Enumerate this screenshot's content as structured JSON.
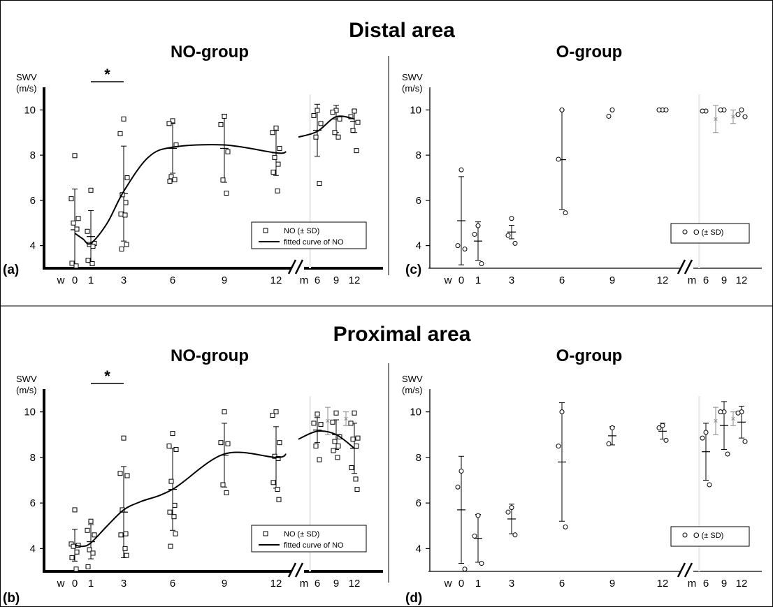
{
  "sections": [
    {
      "title": "Distal area"
    },
    {
      "title": "Proximal area"
    }
  ],
  "y_label_line1": "SWV",
  "y_label_line2": "(m/s)",
  "chart_data": [
    {
      "panel": "(a)",
      "section": "Distal area",
      "group_title": "NO-group",
      "type": "scatter",
      "ylim": [
        3,
        11
      ],
      "yticks": [
        4,
        6,
        8,
        10
      ],
      "xticks_weeks": [
        "w",
        "0",
        "1",
        "3",
        "6",
        "9",
        "12"
      ],
      "xticks_months": [
        "m",
        "6",
        "9",
        "12"
      ],
      "marker": "square",
      "legend": {
        "items": [
          "NO (± SD)",
          "fitted curve of NO"
        ],
        "position": "lower-right"
      },
      "significance": {
        "label": "*",
        "from": "1",
        "to": "3"
      },
      "points": [
        {
          "x": "0",
          "y": [
            7.98,
            6.07,
            5.2,
            5.0,
            4.73,
            3.22,
            3.1
          ]
        },
        {
          "x": "1",
          "y": [
            6.45,
            4.63,
            4.1,
            4.05,
            3.97,
            3.35,
            3.2
          ]
        },
        {
          "x": "3",
          "y": [
            9.6,
            8.95,
            7.0,
            6.25,
            5.9,
            5.4,
            5.35,
            4.05,
            3.85
          ]
        },
        {
          "x": "6",
          "y": [
            9.52,
            9.4,
            8.45,
            7.05,
            6.92,
            6.85
          ]
        },
        {
          "x": "9",
          "y": [
            9.72,
            9.35,
            8.15,
            6.9,
            6.32
          ]
        },
        {
          "x": "12",
          "y": [
            9.2,
            9.0,
            8.3,
            7.9,
            7.6,
            7.25,
            6.42
          ]
        },
        {
          "x": "m6",
          "y": [
            9.98,
            9.75,
            9.4,
            8.8,
            6.75
          ]
        },
        {
          "x": "m9",
          "y": [
            9.98,
            9.9,
            9.6,
            9.0,
            8.8
          ]
        },
        {
          "x": "m12",
          "y": [
            9.95,
            9.7,
            9.45,
            9.1,
            8.2
          ]
        }
      ],
      "errorbars": [
        {
          "x": "0",
          "mean": 4.7,
          "sd": 1.8
        },
        {
          "x": "1",
          "mean": 4.4,
          "sd": 1.15
        },
        {
          "x": "3",
          "mean": 6.3,
          "sd": 2.1
        },
        {
          "x": "6",
          "mean": 8.3,
          "sd": 1.1
        },
        {
          "x": "9",
          "mean": 8.3,
          "sd": 1.5
        },
        {
          "x": "12",
          "mean": 8.1,
          "sd": 1.0
        },
        {
          "x": "m6",
          "mean": 9.1,
          "sd": 1.15
        },
        {
          "x": "m9",
          "mean": 9.6,
          "sd": 0.6
        },
        {
          "x": "m12",
          "mean": 9.5,
          "sd": 0.5
        }
      ],
      "fitted_curve": {
        "segment1": [
          [
            "0",
            4.55
          ],
          [
            "0.5",
            4.3
          ],
          [
            "1",
            4.1
          ],
          [
            "2",
            5.0
          ],
          [
            "3",
            6.4
          ],
          [
            "4.5",
            7.9
          ],
          [
            "6",
            8.35
          ],
          [
            "9",
            8.45
          ],
          [
            "12",
            8.1
          ],
          [
            "12.6",
            8.15
          ]
        ],
        "segment2": [
          [
            "m5",
            8.8
          ],
          [
            "m6",
            9.05
          ],
          [
            "m9",
            9.7
          ],
          [
            "m12",
            9.6
          ]
        ]
      }
    },
    {
      "panel": "(c)",
      "section": "Distal area",
      "group_title": "O-group",
      "type": "scatter",
      "ylim": [
        3,
        11
      ],
      "yticks": [
        4,
        6,
        8,
        10
      ],
      "xticks_weeks": [
        "w",
        "0",
        "1",
        "3",
        "6",
        "9",
        "12"
      ],
      "xticks_months": [
        "m",
        "6",
        "9",
        "12"
      ],
      "marker": "circle",
      "legend": {
        "items": [
          "O (± SD)"
        ],
        "position": "lower-right"
      },
      "points": [
        {
          "x": "0",
          "y": [
            7.35,
            4.0,
            3.85
          ]
        },
        {
          "x": "1",
          "y": [
            4.88,
            4.5,
            3.2
          ]
        },
        {
          "x": "3",
          "y": [
            5.2,
            4.45,
            4.1
          ]
        },
        {
          "x": "6",
          "y": [
            10.0,
            7.82,
            5.45
          ]
        },
        {
          "x": "9",
          "y": [
            10.0,
            9.72
          ]
        },
        {
          "x": "12",
          "y": [
            10.0,
            10.0,
            10.0
          ]
        },
        {
          "x": "m6",
          "y": [
            9.95,
            9.95
          ]
        },
        {
          "x": "m9",
          "y": [
            10.0,
            10.0
          ]
        },
        {
          "x": "m12",
          "y": [
            10.0,
            9.8,
            9.7
          ]
        }
      ],
      "errorbars": [
        {
          "x": "0",
          "mean": 5.1,
          "sd": 1.95
        },
        {
          "x": "1",
          "mean": 4.2,
          "sd": 0.85
        },
        {
          "x": "3",
          "mean": 4.6,
          "sd": 0.3
        },
        {
          "x": "6",
          "mean": 7.8,
          "sd": 2.2
        },
        {
          "x": "m9",
          "mean": 9.6,
          "sd": 0.6,
          "gray": true
        },
        {
          "x": "m12",
          "mean": 9.7,
          "sd": 0.3,
          "gray": true
        }
      ]
    },
    {
      "panel": "(b)",
      "section": "Proximal area",
      "group_title": "NO-group",
      "type": "scatter",
      "ylim": [
        3,
        11
      ],
      "yticks": [
        4,
        6,
        8,
        10
      ],
      "xticks_weeks": [
        "w",
        "0",
        "1",
        "3",
        "6",
        "9",
        "12"
      ],
      "xticks_months": [
        "m",
        "6",
        "9",
        "12"
      ],
      "marker": "square",
      "legend": {
        "items": [
          "NO (± SD)",
          "fitted curve of NO"
        ],
        "position": "lower-right"
      },
      "significance": {
        "label": "*",
        "from": "1",
        "to": "3"
      },
      "points": [
        {
          "x": "0",
          "y": [
            5.7,
            4.2,
            4.15,
            4.1,
            3.85,
            3.6,
            3.1
          ]
        },
        {
          "x": "1",
          "y": [
            5.2,
            4.8,
            4.6,
            3.95,
            3.8,
            3.2
          ]
        },
        {
          "x": "3",
          "y": [
            8.85,
            7.3,
            7.2,
            5.7,
            4.65,
            4.6,
            4.0,
            3.7
          ]
        },
        {
          "x": "6",
          "y": [
            9.05,
            8.5,
            8.35,
            6.95,
            5.9,
            5.6,
            5.4,
            4.65,
            4.1
          ]
        },
        {
          "x": "9",
          "y": [
            10.0,
            8.65,
            8.6,
            6.8,
            6.45
          ]
        },
        {
          "x": "12",
          "y": [
            10.0,
            9.85,
            8.65,
            8.05,
            7.95,
            6.9,
            6.6,
            6.15
          ]
        },
        {
          "x": "m6",
          "y": [
            9.9,
            9.5,
            9.45,
            8.5,
            7.9
          ]
        },
        {
          "x": "m9",
          "y": [
            9.95,
            9.55,
            8.9,
            8.7,
            8.5,
            8.3,
            8.0
          ]
        },
        {
          "x": "m12",
          "y": [
            9.95,
            9.5,
            8.85,
            8.8,
            8.5,
            7.55,
            7.05,
            6.6
          ]
        }
      ],
      "errorbars": [
        {
          "x": "0",
          "mean": 4.15,
          "sd": 0.7
        },
        {
          "x": "1",
          "mean": 4.3,
          "sd": 0.75
        },
        {
          "x": "3",
          "mean": 5.6,
          "sd": 2.0
        },
        {
          "x": "6",
          "mean": 6.6,
          "sd": 1.8
        },
        {
          "x": "9",
          "mean": 8.1,
          "sd": 1.4
        },
        {
          "x": "12",
          "mean": 8.0,
          "sd": 1.35
        },
        {
          "x": "m6",
          "mean": 9.2,
          "sd": 0.55
        },
        {
          "x": "m9",
          "mean": 9.0,
          "sd": 0.65
        },
        {
          "x": "m12",
          "mean": 8.4,
          "sd": 1.1
        },
        {
          "x": "m9",
          "mean": 9.6,
          "sd": 0.6,
          "gray": true
        },
        {
          "x": "m12",
          "mean": 9.7,
          "sd": 0.3,
          "gray": true
        }
      ],
      "fitted_curve": {
        "segment1": [
          [
            "0",
            4.15
          ],
          [
            "0.5",
            4.1
          ],
          [
            "1",
            4.25
          ],
          [
            "2",
            5.0
          ],
          [
            "3",
            5.7
          ],
          [
            "4",
            6.05
          ],
          [
            "6",
            6.6
          ],
          [
            "9",
            8.15
          ],
          [
            "12",
            8.0
          ],
          [
            "12.6",
            8.15
          ]
        ],
        "segment2": [
          [
            "m5",
            8.8
          ],
          [
            "m6",
            9.15
          ],
          [
            "m9",
            9.0
          ],
          [
            "m12",
            8.4
          ]
        ]
      }
    },
    {
      "panel": "(d)",
      "section": "Proximal area",
      "group_title": "O-group",
      "type": "scatter",
      "ylim": [
        3,
        11
      ],
      "yticks": [
        4,
        6,
        8,
        10
      ],
      "xticks_weeks": [
        "w",
        "0",
        "1",
        "3",
        "6",
        "9",
        "12"
      ],
      "xticks_months": [
        "m",
        "6",
        "9",
        "12"
      ],
      "marker": "circle",
      "legend": {
        "items": [
          "O (± SD)"
        ],
        "position": "lower-right"
      },
      "points": [
        {
          "x": "0",
          "y": [
            7.4,
            6.7,
            3.1
          ]
        },
        {
          "x": "1",
          "y": [
            5.45,
            4.55,
            3.35
          ]
        },
        {
          "x": "3",
          "y": [
            5.8,
            5.6,
            4.6
          ]
        },
        {
          "x": "6",
          "y": [
            10.0,
            8.5,
            4.95
          ]
        },
        {
          "x": "9",
          "y": [
            9.3,
            8.6
          ]
        },
        {
          "x": "12",
          "y": [
            9.4,
            9.3,
            8.75
          ]
        },
        {
          "x": "m6",
          "y": [
            9.1,
            8.85,
            6.8
          ]
        },
        {
          "x": "m9",
          "y": [
            10.0,
            10.0,
            8.15
          ]
        },
        {
          "x": "m12",
          "y": [
            10.0,
            9.95,
            8.7
          ]
        }
      ],
      "errorbars": [
        {
          "x": "0",
          "mean": 5.7,
          "sd": 2.35
        },
        {
          "x": "1",
          "mean": 4.45,
          "sd": 1.05
        },
        {
          "x": "3",
          "mean": 5.3,
          "sd": 0.65
        },
        {
          "x": "6",
          "mean": 7.8,
          "sd": 2.6
        },
        {
          "x": "9",
          "mean": 8.95,
          "sd": 0.4
        },
        {
          "x": "12",
          "mean": 9.15,
          "sd": 0.35
        },
        {
          "x": "m6",
          "mean": 8.25,
          "sd": 1.25
        },
        {
          "x": "m9",
          "mean": 9.4,
          "sd": 1.05
        },
        {
          "x": "m12",
          "mean": 9.55,
          "sd": 0.7
        },
        {
          "x": "m9",
          "mean": 9.6,
          "sd": 0.6,
          "gray": true
        },
        {
          "x": "m12",
          "mean": 9.7,
          "sd": 0.3,
          "gray": true
        }
      ]
    }
  ]
}
